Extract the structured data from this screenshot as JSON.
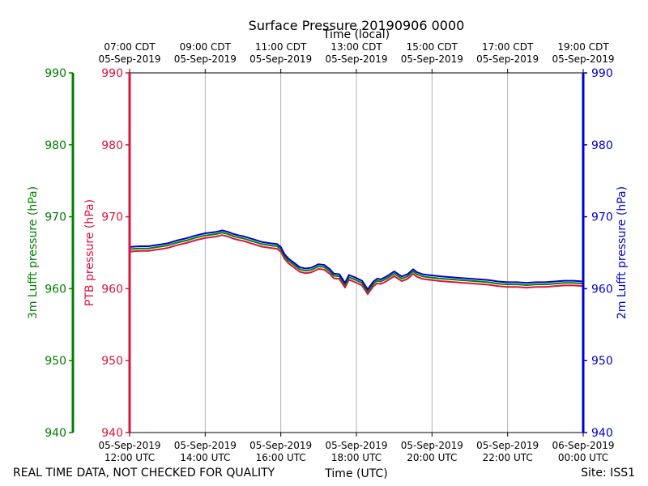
{
  "chart_data": {
    "type": "line",
    "title": "Surface Pressure 20190906 0000",
    "top_axis_label": "Time (local)",
    "bottom_axis_label": "Time (UTC)",
    "footer_left": "REAL TIME DATA, NOT CHECKED FOR QUALITY",
    "footer_right": "Site: ISS1",
    "x_range_hours_utc": [
      12,
      24
    ],
    "ylim": [
      940,
      990
    ],
    "y_ticks": [
      940,
      950,
      960,
      970,
      980,
      990
    ],
    "y_axes": [
      {
        "name": "3m Lufft pressure (hPa)",
        "side": "far-left",
        "color": "#008000"
      },
      {
        "name": "PTB pressure (hPa)",
        "side": "left",
        "color": "#dc143c"
      },
      {
        "name": "2m Lufft pressure (hPa)",
        "side": "right",
        "color": "#0000cd"
      }
    ],
    "bottom_ticks": [
      {
        "hour": 12,
        "date": "05-Sep-2019",
        "time": "12:00 UTC"
      },
      {
        "hour": 14,
        "date": "05-Sep-2019",
        "time": "14:00 UTC"
      },
      {
        "hour": 16,
        "date": "05-Sep-2019",
        "time": "16:00 UTC"
      },
      {
        "hour": 18,
        "date": "05-Sep-2019",
        "time": "18:00 UTC"
      },
      {
        "hour": 20,
        "date": "05-Sep-2019",
        "time": "20:00 UTC"
      },
      {
        "hour": 22,
        "date": "05-Sep-2019",
        "time": "22:00 UTC"
      },
      {
        "hour": 24,
        "date": "06-Sep-2019",
        "time": "00:00 UTC"
      }
    ],
    "top_ticks": [
      {
        "hour": 12,
        "time": "07:00 CDT",
        "date": "05-Sep-2019"
      },
      {
        "hour": 14,
        "time": "09:00 CDT",
        "date": "05-Sep-2019"
      },
      {
        "hour": 16,
        "time": "11:00 CDT",
        "date": "05-Sep-2019"
      },
      {
        "hour": 18,
        "time": "13:00 CDT",
        "date": "05-Sep-2019"
      },
      {
        "hour": 20,
        "time": "15:00 CDT",
        "date": "05-Sep-2019"
      },
      {
        "hour": 22,
        "time": "17:00 CDT",
        "date": "05-Sep-2019"
      },
      {
        "hour": 24,
        "time": "19:00 CDT",
        "date": "05-Sep-2019"
      }
    ],
    "series": [
      {
        "name": "PTB pressure",
        "color": "#dc143c",
        "offset": -0.35
      },
      {
        "name": "3m Lufft pressure",
        "color": "#008000",
        "offset": 0
      },
      {
        "name": "2m Lufft pressure",
        "color": "#0000cd",
        "offset": 0.3
      }
    ],
    "base_x": [
      12,
      12.25,
      12.5,
      12.75,
      13,
      13.25,
      13.5,
      13.75,
      14,
      14.15,
      14.3,
      14.45,
      14.6,
      14.75,
      14.9,
      15.0,
      15.25,
      15.5,
      15.75,
      15.9,
      16.0,
      16.1,
      16.2,
      16.35,
      16.5,
      16.65,
      16.8,
      17.0,
      17.15,
      17.3,
      17.4,
      17.55,
      17.7,
      17.8,
      17.95,
      18.15,
      18.3,
      18.45,
      18.55,
      18.65,
      18.8,
      19.0,
      19.2,
      19.35,
      19.5,
      19.6,
      19.75,
      19.9,
      20.25,
      20.5,
      20.75,
      21.0,
      21.25,
      21.5,
      21.75,
      22.0,
      22.25,
      22.5,
      22.75,
      23.0,
      23.25,
      23.5,
      23.75,
      24.0
    ],
    "base_y": [
      965.5,
      965.6,
      965.6,
      965.8,
      966.0,
      966.4,
      966.7,
      967.1,
      967.4,
      967.5,
      967.6,
      967.8,
      967.6,
      967.3,
      967.1,
      967.0,
      966.6,
      966.2,
      966.0,
      965.9,
      965.5,
      964.5,
      963.9,
      963.3,
      962.7,
      962.5,
      962.6,
      963.1,
      963.0,
      962.4,
      961.8,
      961.7,
      960.5,
      961.6,
      961.3,
      960.8,
      959.6,
      960.7,
      961.1,
      961.0,
      961.4,
      962.1,
      961.4,
      961.7,
      962.4,
      962.0,
      961.7,
      961.6,
      961.4,
      961.3,
      961.2,
      961.1,
      961.0,
      960.9,
      960.7,
      960.6,
      960.6,
      960.5,
      960.6,
      960.6,
      960.7,
      960.8,
      960.8,
      960.7
    ]
  }
}
